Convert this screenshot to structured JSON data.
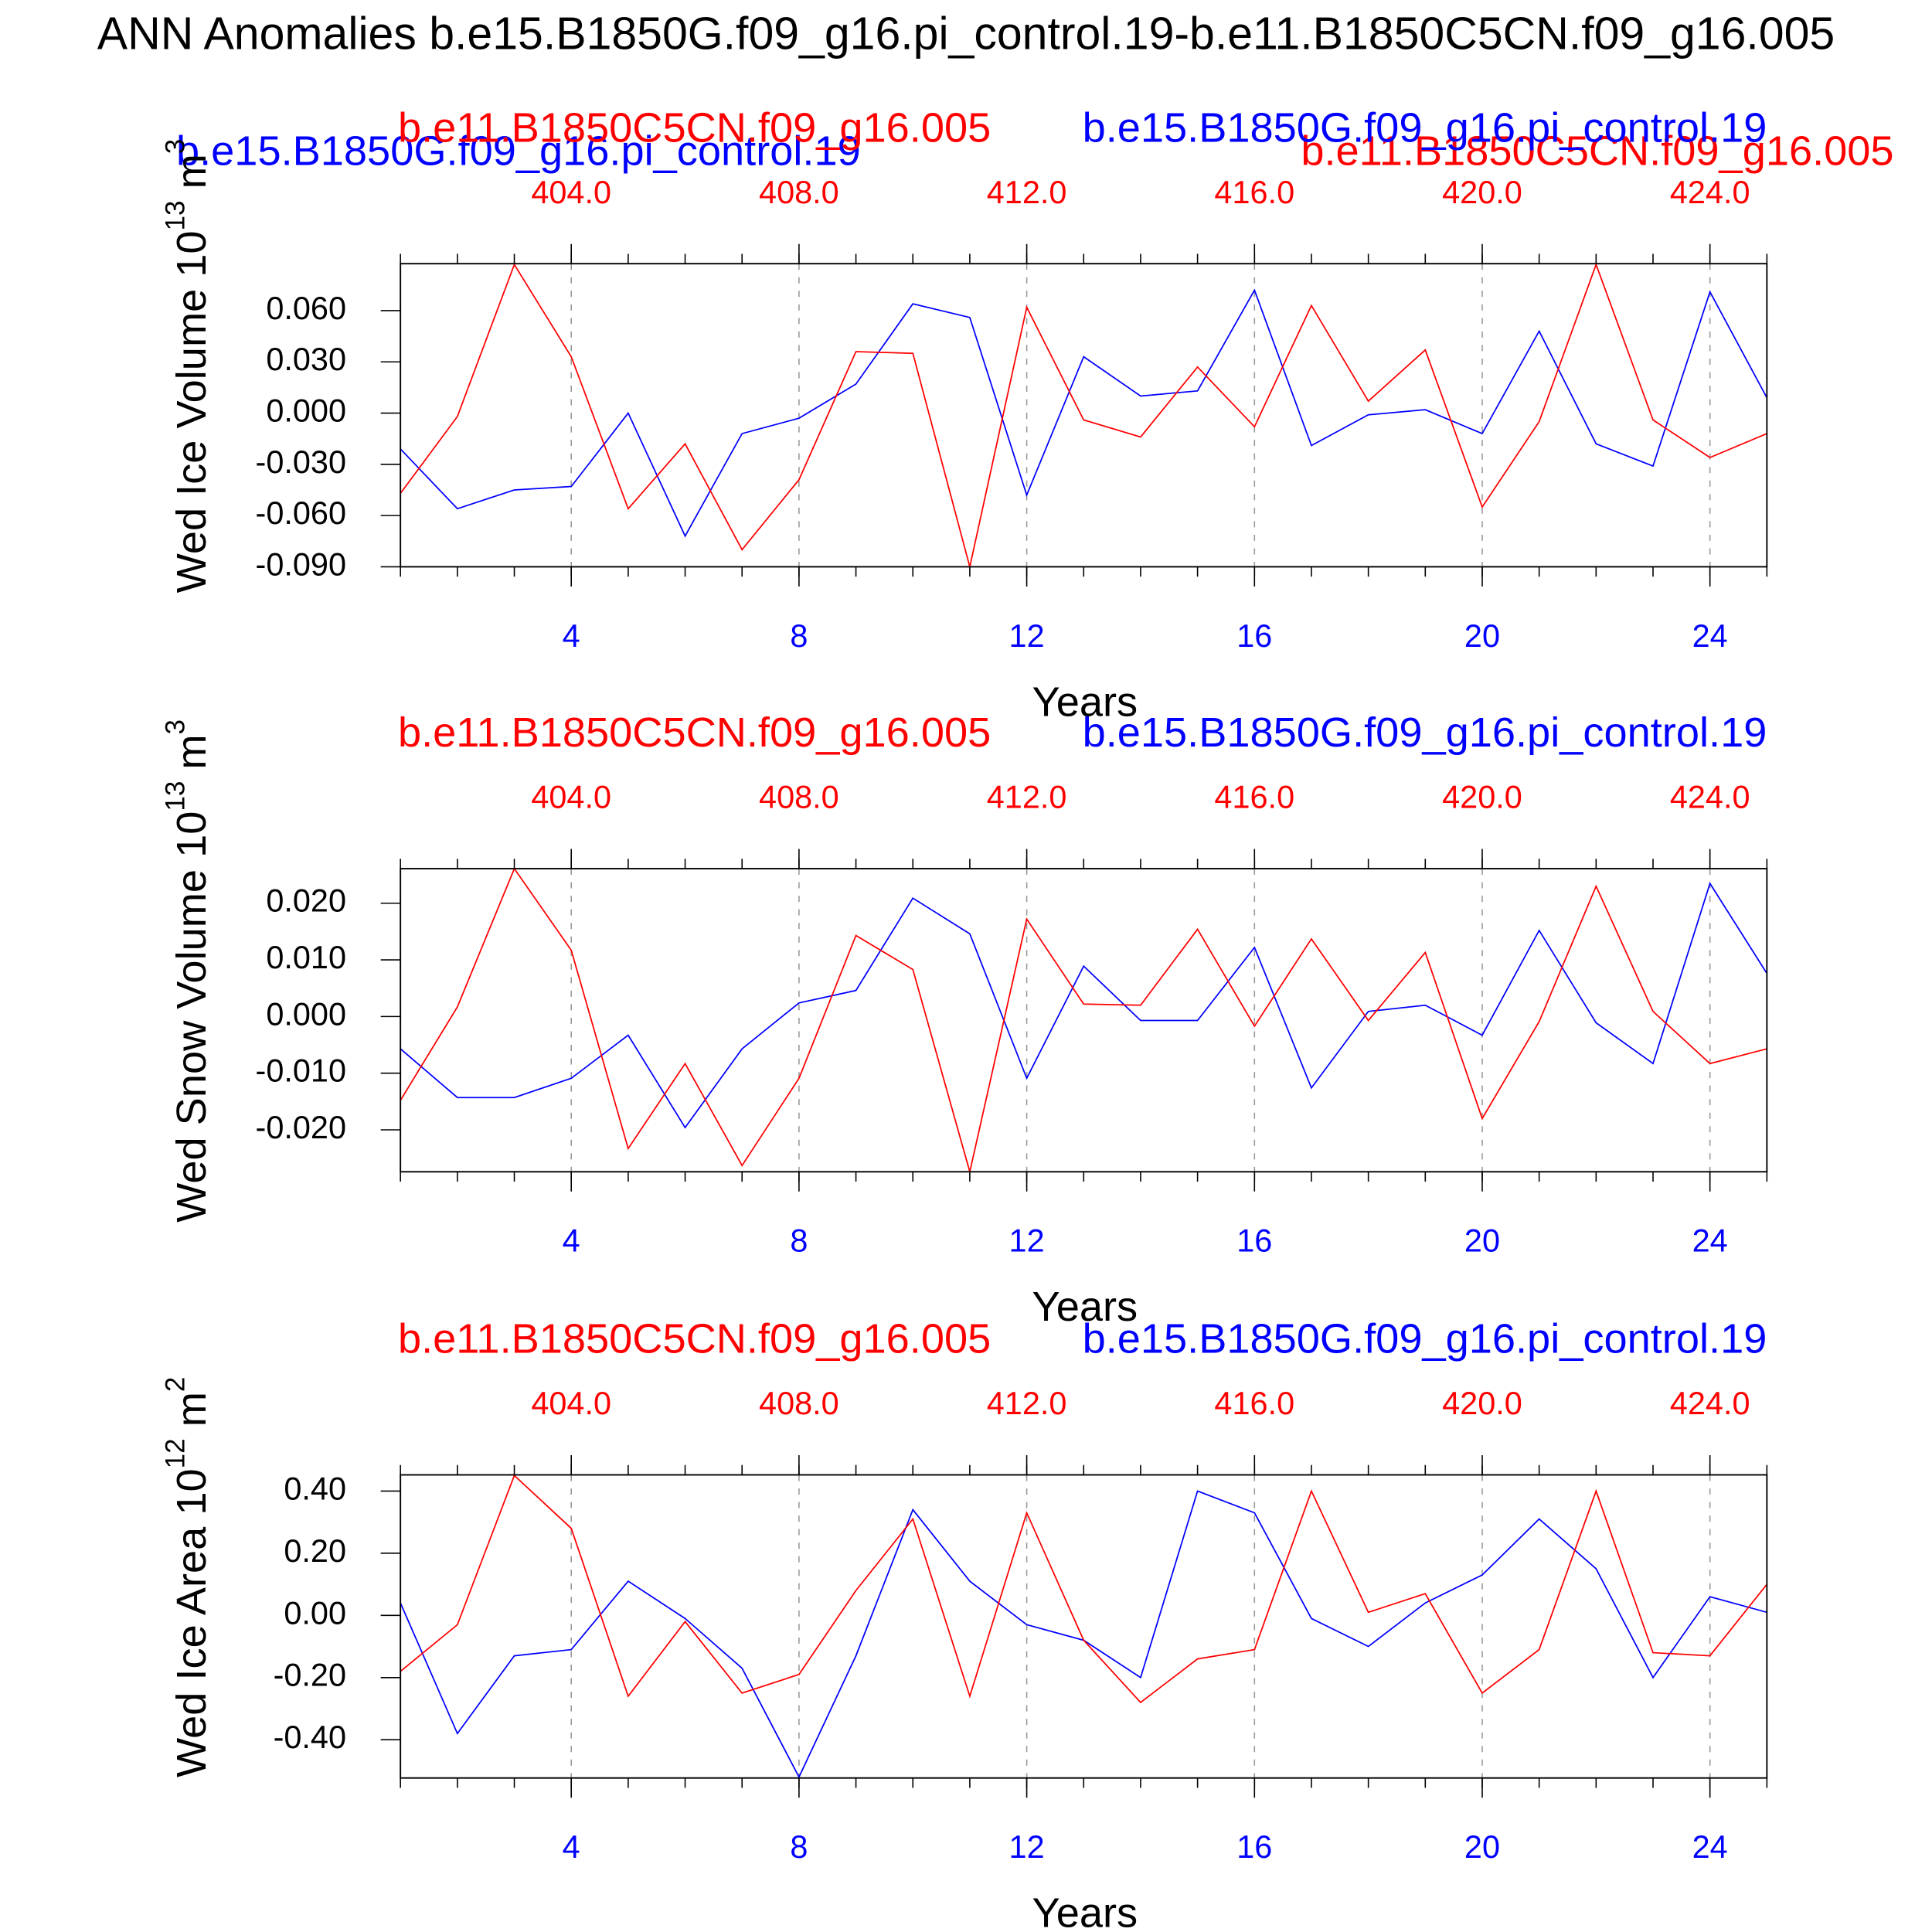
{
  "chart_data": [
    {
      "type": "line",
      "title": "ANN Anomalies b.e15.B1850G.f09_g16.pi_control.19-b.e11.B1850C5CN.f09_g16.005",
      "xlabel": "Years",
      "ylabel": {
        "text": "Wed Ice Volume 10",
        "power": "13",
        "unit": " m",
        "unit_power": "3"
      },
      "x": [
        1,
        2,
        3,
        4,
        5,
        6,
        7,
        8,
        9,
        10,
        11,
        12,
        13,
        14,
        15,
        16,
        17,
        18,
        19,
        20,
        21,
        22,
        23,
        24,
        25
      ],
      "xlim": [
        1,
        25
      ],
      "xticks": [
        4,
        8,
        12,
        16,
        20,
        24
      ],
      "x2lim": [
        401,
        425
      ],
      "x2ticks": [
        {
          "value": 404,
          "label": "404.0"
        },
        {
          "value": 408,
          "label": "408.0"
        },
        {
          "value": 412,
          "label": "412.0"
        },
        {
          "value": 416,
          "label": "416.0"
        },
        {
          "value": 420,
          "label": "420.0"
        },
        {
          "value": 424,
          "label": "424.0"
        }
      ],
      "ylim": [
        -0.09,
        0.0875
      ],
      "yticks": [
        {
          "value": 0.06,
          "label": "0.060"
        },
        {
          "value": 0.03,
          "label": "0.030"
        },
        {
          "value": 0,
          "label": "0.000"
        },
        {
          "value": -0.03,
          "label": "-0.030"
        },
        {
          "value": -0.06,
          "label": "-0.060"
        },
        {
          "value": -0.09,
          "label": "-0.090"
        }
      ],
      "grid": "x-dashed",
      "series": [
        {
          "name": "b.e15.B1850G.f09_g16.pi_control.19",
          "color": "blue",
          "values": [
            -0.021,
            -0.056,
            -0.045,
            -0.043,
            0.0,
            -0.072,
            -0.012,
            -0.003,
            0.017,
            0.064,
            0.056,
            -0.048,
            0.033,
            0.01,
            0.013,
            0.072,
            -0.019,
            -0.001,
            0.002,
            -0.012,
            0.048,
            -0.018,
            -0.031,
            0.071,
            0.009
          ]
        },
        {
          "name": "b.e11.B1850C5CN.f09_g16.005",
          "color": "red",
          "values": [
            -0.047,
            -0.002,
            0.087,
            0.033,
            -0.056,
            -0.018,
            -0.08,
            -0.039,
            0.036,
            0.035,
            -0.09,
            0.062,
            -0.004,
            -0.014,
            0.027,
            -0.008,
            0.063,
            0.007,
            0.037,
            -0.055,
            -0.005,
            0.087,
            -0.004,
            -0.026,
            -0.012
          ]
        }
      ]
    },
    {
      "type": "line",
      "xlabel": "Years",
      "ylabel": {
        "text": "Wed Snow Volume 10",
        "power": "13",
        "unit": " m",
        "unit_power": "3"
      },
      "x": [
        1,
        2,
        3,
        4,
        5,
        6,
        7,
        8,
        9,
        10,
        11,
        12,
        13,
        14,
        15,
        16,
        17,
        18,
        19,
        20,
        21,
        22,
        23,
        24,
        25
      ],
      "xlim": [
        1,
        25
      ],
      "xticks": [
        4,
        8,
        12,
        16,
        20,
        24
      ],
      "x2lim": [
        401,
        425
      ],
      "x2ticks": [
        {
          "value": 404,
          "label": "404.0"
        },
        {
          "value": 408,
          "label": "408.0"
        },
        {
          "value": 412,
          "label": "412.0"
        },
        {
          "value": 416,
          "label": "416.0"
        },
        {
          "value": 420,
          "label": "420.0"
        },
        {
          "value": 424,
          "label": "424.0"
        }
      ],
      "ylim": [
        -0.0274,
        0.0261
      ],
      "yticks": [
        {
          "value": 0.02,
          "label": "0.020"
        },
        {
          "value": 0.01,
          "label": "0.010"
        },
        {
          "value": 0,
          "label": "0.000"
        },
        {
          "value": -0.01,
          "label": "-0.010"
        },
        {
          "value": -0.02,
          "label": "-0.020"
        }
      ],
      "grid": "x-dashed",
      "series": [
        {
          "name": "b.e15.B1850G.f09_g16.pi_control.19",
          "color": "blue",
          "values": [
            -0.0057,
            -0.0143,
            -0.0143,
            -0.0109,
            -0.0033,
            -0.0196,
            -0.0057,
            0.0024,
            0.0046,
            0.0209,
            0.0146,
            -0.0109,
            0.0089,
            -0.0007,
            -0.0007,
            0.0122,
            -0.0126,
            0.0009,
            0.002,
            -0.0033,
            0.0152,
            -0.0011,
            -0.0083,
            0.0235,
            0.0076
          ]
        },
        {
          "name": "b.e11.B1850C5CN.f09_g16.005",
          "color": "red",
          "values": [
            -0.0148,
            0.0017,
            0.0261,
            0.0117,
            -0.0233,
            -0.0083,
            -0.0263,
            -0.0109,
            0.0143,
            0.0083,
            -0.0274,
            0.0172,
            0.0022,
            0.002,
            0.0154,
            -0.0017,
            0.0137,
            -0.0007,
            0.0113,
            -0.018,
            -0.0009,
            0.023,
            0.0009,
            -0.0083,
            -0.0057
          ]
        }
      ]
    },
    {
      "type": "line",
      "xlabel": "Years",
      "ylabel": {
        "text": "Wed Ice Area 10",
        "power": "12",
        "unit": " m",
        "unit_power": "2"
      },
      "x": [
        1,
        2,
        3,
        4,
        5,
        6,
        7,
        8,
        9,
        10,
        11,
        12,
        13,
        14,
        15,
        16,
        17,
        18,
        19,
        20,
        21,
        22,
        23,
        24,
        25
      ],
      "xlim": [
        1,
        25
      ],
      "xticks": [
        4,
        8,
        12,
        16,
        20,
        24
      ],
      "x2lim": [
        401,
        425
      ],
      "x2ticks": [
        {
          "value": 404,
          "label": "404.0"
        },
        {
          "value": 408,
          "label": "408.0"
        },
        {
          "value": 412,
          "label": "412.0"
        },
        {
          "value": 416,
          "label": "416.0"
        },
        {
          "value": 420,
          "label": "420.0"
        },
        {
          "value": 424,
          "label": "424.0"
        }
      ],
      "ylim": [
        -0.523,
        0.452
      ],
      "yticks": [
        {
          "value": 0.4,
          "label": "0.40"
        },
        {
          "value": 0.2,
          "label": "0.20"
        },
        {
          "value": 0,
          "label": "0.00"
        },
        {
          "value": -0.2,
          "label": "-0.20"
        },
        {
          "value": -0.4,
          "label": "-0.40"
        }
      ],
      "grid": "x-dashed",
      "series": [
        {
          "name": "b.e15.B1850G.f09_g16.pi_control.19",
          "color": "blue",
          "values": [
            0.04,
            -0.38,
            -0.13,
            -0.11,
            0.11,
            -0.01,
            -0.17,
            -0.52,
            -0.13,
            0.34,
            0.11,
            -0.03,
            -0.08,
            -0.2,
            0.4,
            0.33,
            -0.01,
            -0.1,
            0.04,
            0.13,
            0.31,
            0.15,
            -0.2,
            0.06,
            0.01
          ]
        },
        {
          "name": "b.e11.B1850C5CN.f09_g16.005",
          "color": "red",
          "values": [
            -0.18,
            -0.03,
            0.45,
            0.28,
            -0.26,
            -0.02,
            -0.25,
            -0.19,
            0.08,
            0.31,
            -0.26,
            0.33,
            -0.08,
            -0.28,
            -0.14,
            -0.11,
            0.4,
            0.01,
            0.07,
            -0.25,
            -0.11,
            0.4,
            -0.12,
            -0.13,
            0.1
          ]
        }
      ]
    }
  ]
}
